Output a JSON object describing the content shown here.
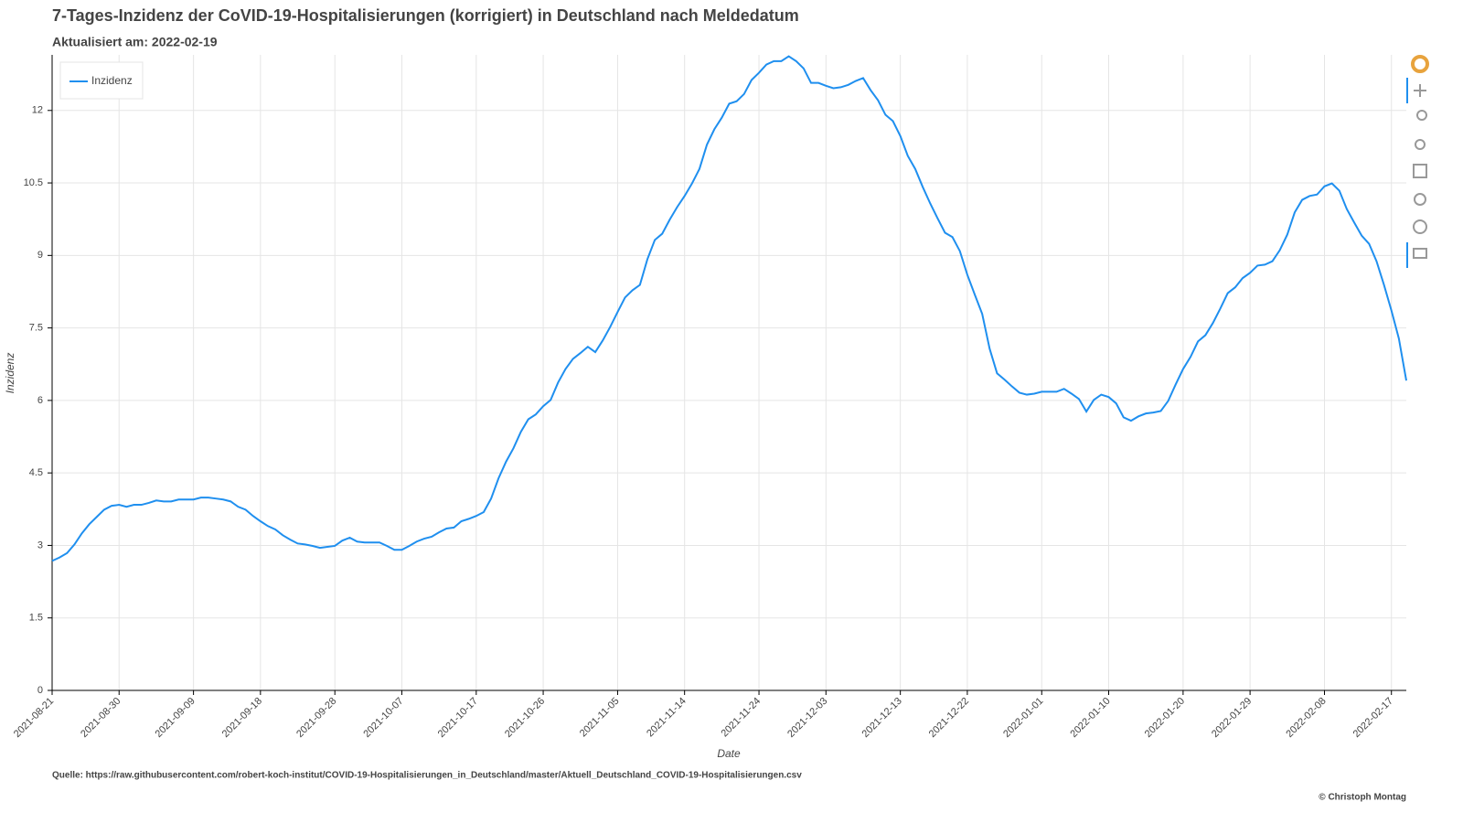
{
  "chart_data": {
    "type": "line",
    "title": "7-Tages-Inzidenz der CoVID-19-Hospitalisierungen (korrigiert) in Deutschland nach Meldedatum",
    "subtitle": "Aktualisiert am: 2022-02-19",
    "x_label": "Date",
    "y_label": "Inzidenz",
    "source": "Quelle: https://raw.githubusercontent.com/robert-koch-institut/COVID-19-Hospitalisierungen_in_Deutschland/master/Aktuell_Deutschland_COVID-19-Hospitalisierungen.csv",
    "copyright": "© Christoph Montag",
    "grid": true,
    "legend_position": "top-left",
    "xlim": [
      "2021-08-21",
      "2022-02-19"
    ],
    "xticks": [
      "2021-08-21",
      "2021-08-30",
      "2021-09-09",
      "2021-09-18",
      "2021-09-28",
      "2021-10-07",
      "2021-10-17",
      "2021-10-26",
      "2021-11-05",
      "2021-11-14",
      "2021-11-24",
      "2021-12-03",
      "2021-12-13",
      "2021-12-22",
      "2022-01-01",
      "2022-01-10",
      "2022-01-20",
      "2022-01-29",
      "2022-02-08",
      "2022-02-17"
    ],
    "ylim": [
      0,
      13.15
    ],
    "yticks": [
      0,
      1.5,
      3,
      4.5,
      6,
      7.5,
      9,
      10.5,
      12
    ],
    "x": [
      "2021-08-21",
      "2021-08-22",
      "2021-08-23",
      "2021-08-24",
      "2021-08-25",
      "2021-08-26",
      "2021-08-27",
      "2021-08-28",
      "2021-08-29",
      "2021-08-30",
      "2021-08-31",
      "2021-09-01",
      "2021-09-02",
      "2021-09-03",
      "2021-09-04",
      "2021-09-05",
      "2021-09-06",
      "2021-09-07",
      "2021-09-08",
      "2021-09-09",
      "2021-09-10",
      "2021-09-11",
      "2021-09-12",
      "2021-09-13",
      "2021-09-14",
      "2021-09-15",
      "2021-09-16",
      "2021-09-17",
      "2021-09-18",
      "2021-09-19",
      "2021-09-20",
      "2021-09-21",
      "2021-09-22",
      "2021-09-23",
      "2021-09-24",
      "2021-09-25",
      "2021-09-26",
      "2021-09-27",
      "2021-09-28",
      "2021-09-29",
      "2021-09-30",
      "2021-10-01",
      "2021-10-02",
      "2021-10-03",
      "2021-10-04",
      "2021-10-05",
      "2021-10-06",
      "2021-10-07",
      "2021-10-08",
      "2021-10-09",
      "2021-10-10",
      "2021-10-11",
      "2021-10-12",
      "2021-10-13",
      "2021-10-14",
      "2021-10-15",
      "2021-10-16",
      "2021-10-17",
      "2021-10-18",
      "2021-10-19",
      "2021-10-20",
      "2021-10-21",
      "2021-10-22",
      "2021-10-23",
      "2021-10-24",
      "2021-10-25",
      "2021-10-26",
      "2021-10-27",
      "2021-10-28",
      "2021-10-29",
      "2021-10-30",
      "2021-10-31",
      "2021-11-01",
      "2021-11-02",
      "2021-11-03",
      "2021-11-04",
      "2021-11-05",
      "2021-11-06",
      "2021-11-07",
      "2021-11-08",
      "2021-11-09",
      "2021-11-10",
      "2021-11-11",
      "2021-11-12",
      "2021-11-13",
      "2021-11-14",
      "2021-11-15",
      "2021-11-16",
      "2021-11-17",
      "2021-11-18",
      "2021-11-19",
      "2021-11-20",
      "2021-11-21",
      "2021-11-22",
      "2021-11-23",
      "2021-11-24",
      "2021-11-25",
      "2021-11-26",
      "2021-11-27",
      "2021-11-28",
      "2021-11-29",
      "2021-11-30",
      "2021-12-01",
      "2021-12-02",
      "2021-12-03",
      "2021-12-04",
      "2021-12-05",
      "2021-12-06",
      "2021-12-07",
      "2021-12-08",
      "2021-12-09",
      "2021-12-10",
      "2021-12-11",
      "2021-12-12",
      "2021-12-13",
      "2021-12-14",
      "2021-12-15",
      "2021-12-16",
      "2021-12-17",
      "2021-12-18",
      "2021-12-19",
      "2021-12-20",
      "2021-12-21",
      "2021-12-22",
      "2021-12-23",
      "2021-12-24",
      "2021-12-25",
      "2021-12-26",
      "2021-12-27",
      "2021-12-28",
      "2021-12-29",
      "2021-12-30",
      "2021-12-31",
      "2022-01-01",
      "2022-01-02",
      "2022-01-03",
      "2022-01-04",
      "2022-01-05",
      "2022-01-06",
      "2022-01-07",
      "2022-01-08",
      "2022-01-09",
      "2022-01-10",
      "2022-01-11",
      "2022-01-12",
      "2022-01-13",
      "2022-01-14",
      "2022-01-15",
      "2022-01-16",
      "2022-01-17",
      "2022-01-18",
      "2022-01-19",
      "2022-01-20",
      "2022-01-21",
      "2022-01-22",
      "2022-01-23",
      "2022-01-24",
      "2022-01-25",
      "2022-01-26",
      "2022-01-27",
      "2022-01-28",
      "2022-01-29",
      "2022-01-30",
      "2022-01-31",
      "2022-02-01",
      "2022-02-02",
      "2022-02-03",
      "2022-02-04",
      "2022-02-05",
      "2022-02-06",
      "2022-02-07",
      "2022-02-08",
      "2022-02-09",
      "2022-02-10",
      "2022-02-11",
      "2022-02-12",
      "2022-02-13",
      "2022-02-14",
      "2022-02-15",
      "2022-02-16",
      "2022-02-17",
      "2022-02-18",
      "2022-02-19"
    ],
    "series": [
      {
        "name": "Inzidenz",
        "color": "#1f8fef",
        "values": [
          2.68,
          2.75,
          2.84,
          3.02,
          3.25,
          3.44,
          3.59,
          3.74,
          3.82,
          3.84,
          3.8,
          3.84,
          3.84,
          3.88,
          3.93,
          3.91,
          3.91,
          3.95,
          3.95,
          3.95,
          3.99,
          3.99,
          3.97,
          3.95,
          3.91,
          3.8,
          3.74,
          3.61,
          3.5,
          3.4,
          3.33,
          3.21,
          3.12,
          3.04,
          3.02,
          2.99,
          2.95,
          2.97,
          2.99,
          3.1,
          3.16,
          3.08,
          3.06,
          3.06,
          3.06,
          2.99,
          2.91,
          2.91,
          2.99,
          3.08,
          3.14,
          3.18,
          3.27,
          3.35,
          3.37,
          3.5,
          3.55,
          3.61,
          3.69,
          3.97,
          4.39,
          4.73,
          5.01,
          5.35,
          5.61,
          5.71,
          5.88,
          6.01,
          6.37,
          6.65,
          6.86,
          6.98,
          7.11,
          7.0,
          7.24,
          7.52,
          7.83,
          8.13,
          8.28,
          8.39,
          8.92,
          9.32,
          9.45,
          9.74,
          10.0,
          10.23,
          10.49,
          10.79,
          11.29,
          11.61,
          11.85,
          12.14,
          12.19,
          12.34,
          12.63,
          12.78,
          12.95,
          13.02,
          13.02,
          13.12,
          13.02,
          12.87,
          12.57,
          12.57,
          12.51,
          12.46,
          12.48,
          12.53,
          12.61,
          12.67,
          12.42,
          12.21,
          11.91,
          11.78,
          11.47,
          11.06,
          10.79,
          10.42,
          10.08,
          9.77,
          9.47,
          9.38,
          9.09,
          8.6,
          8.19,
          7.79,
          7.07,
          6.56,
          6.43,
          6.29,
          6.16,
          6.12,
          6.14,
          6.18,
          6.18,
          6.18,
          6.24,
          6.14,
          6.03,
          5.77,
          6.01,
          6.12,
          6.07,
          5.94,
          5.65,
          5.58,
          5.67,
          5.73,
          5.75,
          5.78,
          5.99,
          6.33,
          6.65,
          6.9,
          7.22,
          7.35,
          7.6,
          7.9,
          8.22,
          8.34,
          8.53,
          8.64,
          8.79,
          8.81,
          8.88,
          9.11,
          9.43,
          9.89,
          10.15,
          10.23,
          10.26,
          10.43,
          10.49,
          10.34,
          9.96,
          9.68,
          9.41,
          9.24,
          8.88,
          8.39,
          7.86,
          7.28,
          6.41
        ]
      }
    ]
  }
}
